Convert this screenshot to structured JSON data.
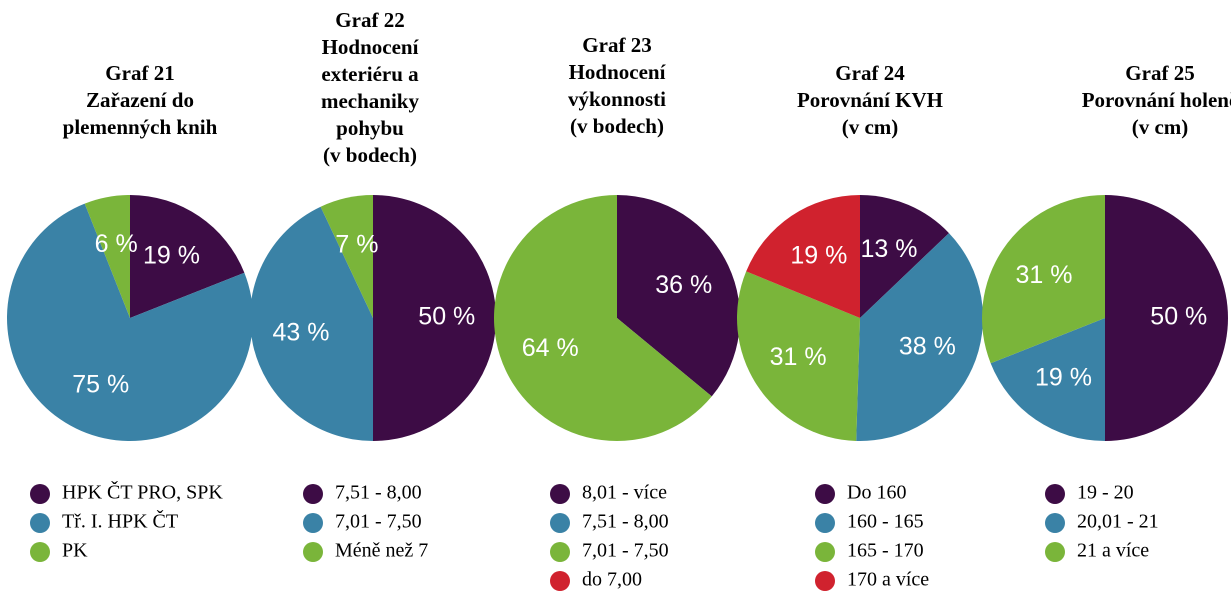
{
  "chart_data": [
    {
      "type": "pie",
      "title": [
        "Graf  21",
        "Zařazení do",
        "plemenných knih"
      ],
      "categories": [
        "HPK ČT PRO, SPK",
        "Tř. I. HPK ČT",
        "PK"
      ],
      "values": [
        19,
        75,
        6
      ],
      "value_labels": [
        "19 %",
        "75 %",
        "6 %"
      ],
      "colors": [
        "#3d0c45",
        "#3a82a6",
        "#7ab53a"
      ]
    },
    {
      "type": "pie",
      "title": [
        "Graf  22",
        "Hodnocení",
        "exteriéru a",
        "mechaniky",
        "pohybu",
        "(v bodech)"
      ],
      "categories": [
        "7,51 - 8,00",
        "7,01 - 7,50",
        "Méně než 7"
      ],
      "values": [
        50,
        43,
        7
      ],
      "value_labels": [
        "50 %",
        "43 %",
        "7 %"
      ],
      "colors": [
        "#3d0c45",
        "#3a82a6",
        "#7ab53a"
      ]
    },
    {
      "type": "pie",
      "title": [
        "Graf  23",
        "Hodnocení",
        "výkonnosti",
        "(v bodech)"
      ],
      "categories": [
        "8,01 - více",
        "7,51 - 8,00",
        "7,01 - 7,50",
        "do 7,00"
      ],
      "values": [
        36,
        0,
        64,
        0
      ],
      "value_labels": [
        "36 %",
        null,
        "64 %",
        null
      ],
      "colors": [
        "#3d0c45",
        "#3a82a6",
        "#7ab53a",
        "#d0222e"
      ]
    },
    {
      "type": "pie",
      "title": [
        "Graf  24",
        "Porovnání KVH",
        "(v cm)"
      ],
      "categories": [
        "Do 160",
        "160 - 165",
        "165 - 170",
        "170 a více"
      ],
      "values": [
        13,
        38,
        31,
        19
      ],
      "value_labels": [
        "13 %",
        "38 %",
        "31 %",
        "19 %"
      ],
      "colors": [
        "#3d0c45",
        "#3a82a6",
        "#7ab53a",
        "#d0222e"
      ]
    },
    {
      "type": "pie",
      "title": [
        "Graf  25",
        "Porovnání holeně",
        "(v cm)"
      ],
      "categories": [
        "19 - 20",
        "20,01 - 21",
        "21 a více"
      ],
      "values": [
        50,
        19,
        31
      ],
      "value_labels": [
        "50 %",
        "19 %",
        "31 %"
      ],
      "colors": [
        "#3d0c45",
        "#3a82a6",
        "#7ab53a"
      ]
    }
  ]
}
